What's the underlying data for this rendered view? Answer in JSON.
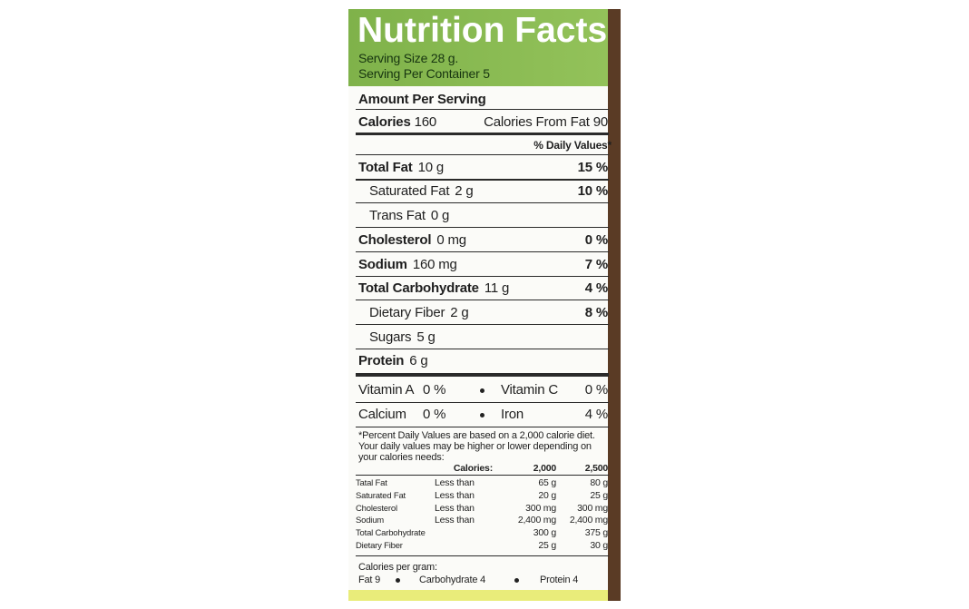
{
  "header": {
    "title": "Nutrition  Facts",
    "serving_size": "Serving Size 28 g.",
    "servings_per_container": "Serving Per Container 5"
  },
  "amount_per_serving": "Amount Per Serving",
  "calories": {
    "label": "Calories",
    "value": "160",
    "from_fat": "Calories From Fat 90"
  },
  "daily_values_header": "% Daily Values*",
  "nutrients": [
    {
      "name": "Total Fat",
      "amount": "10 g",
      "daily_value": "15 %"
    },
    {
      "name": "Saturated Fat",
      "amount": "2 g",
      "daily_value": "10 %"
    },
    {
      "name": "Trans Fat",
      "amount": "0 g"
    },
    {
      "name": "Cholesterol",
      "amount": "0 mg",
      "daily_value": "0 %"
    },
    {
      "name": "Sodium",
      "amount": "160 mg",
      "daily_value": "7 %"
    },
    {
      "name": "Total Carbohydrate",
      "amount": "11 g",
      "daily_value": "4 %"
    },
    {
      "name": "Dietary Fiber",
      "amount": "2 g",
      "daily_value": "8 %"
    },
    {
      "name": "Sugars",
      "amount": "5 g"
    },
    {
      "name": "Protein",
      "amount": "6 g"
    }
  ],
  "vitamins": [
    {
      "name": "Vitamin A",
      "value": "0 %"
    },
    {
      "name": "Vitamin C",
      "value": "0 %"
    },
    {
      "name": "Calcium",
      "value": "0 %"
    },
    {
      "name": "Iron",
      "value": "4 %"
    }
  ],
  "footnote": "*Percent Daily Values are based on a 2,000 calorie diet. Your daily values may be higher or lower depending on your calories needs:",
  "reference_table": {
    "header": [
      "Calories:",
      "2,000",
      "2,500"
    ],
    "rows": [
      {
        "name": "Tatal Fat",
        "qualifier": "Less than",
        "v2000": "65 g",
        "v2500": "80 g"
      },
      {
        "name": "Saturated Fat",
        "qualifier": "Less than",
        "v2000": "20 g",
        "v2500": "25 g"
      },
      {
        "name": "Cholesterol",
        "qualifier": "Less than",
        "v2000": "300 mg",
        "v2500": "300 mg"
      },
      {
        "name": "Sodium",
        "qualifier": "Less than",
        "v2000": "2,400 mg",
        "v2500": "2,400 mg"
      },
      {
        "name": "Total Carbohydrate",
        "v2000": "300 g",
        "v2500": "375 g"
      },
      {
        "name": "Dietary Fiber",
        "v2000": "25 g",
        "v2500": "30 g"
      }
    ]
  },
  "calories_per_gram": {
    "label": "Calories per gram:",
    "fat": "Fat 9",
    "carbohydrate": "Carbohydrate 4",
    "protein": "Protein 4"
  }
}
